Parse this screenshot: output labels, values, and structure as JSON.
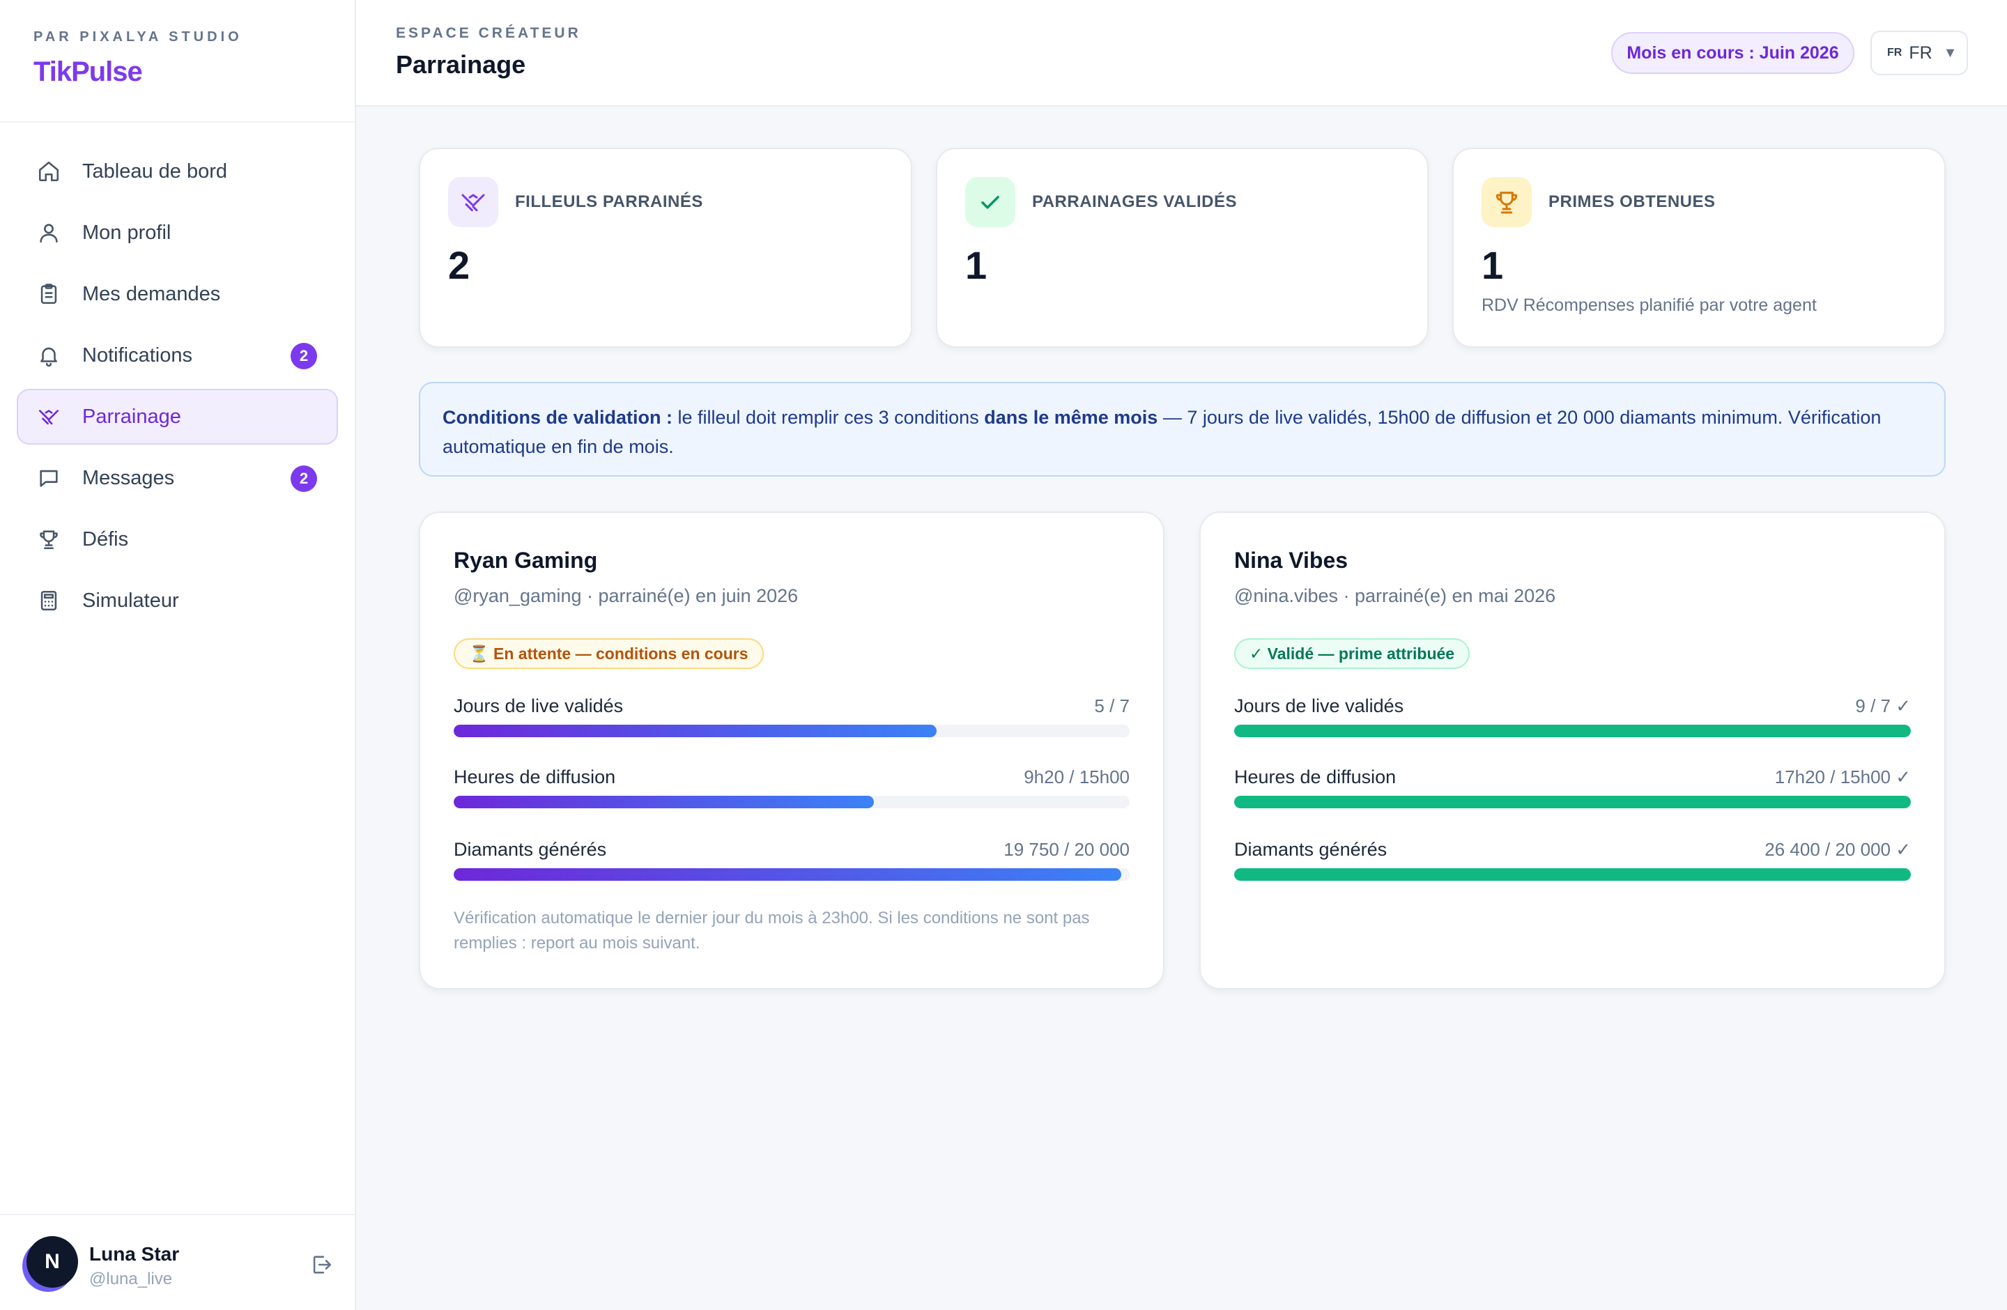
{
  "brand": {
    "kicker": "PAR PIXALYA STUDIO",
    "name": "TikPulse"
  },
  "sidebar": {
    "items": [
      {
        "label": "Tableau de bord",
        "icon": "home-icon"
      },
      {
        "label": "Mon profil",
        "icon": "user-icon"
      },
      {
        "label": "Mes demandes",
        "icon": "clipboard-icon"
      },
      {
        "label": "Notifications",
        "icon": "bell-icon",
        "badge": "2"
      },
      {
        "label": "Parrainage",
        "icon": "handshake-icon",
        "active": true
      },
      {
        "label": "Messages",
        "icon": "chat-icon",
        "badge": "2"
      },
      {
        "label": "Défis",
        "icon": "trophy-icon"
      },
      {
        "label": "Simulateur",
        "icon": "calculator-icon"
      }
    ]
  },
  "user": {
    "initial": "N",
    "name": "Luna Star",
    "handle": "@luna_live"
  },
  "header": {
    "kicker": "ESPACE CRÉATEUR",
    "title": "Parrainage",
    "month_pill": "Mois en cours : Juin 2026",
    "lang_code": "FR",
    "lang_label": "FR",
    "lang_caret": "▼"
  },
  "stats": [
    {
      "label": "FILLEULS PARRAINÉS",
      "value": "2",
      "sub": "",
      "icon": "handshake-icon",
      "color": "#7c3aed",
      "bg": "#f1ebfe"
    },
    {
      "label": "PARRAINAGES VALIDÉS",
      "value": "1",
      "sub": "",
      "icon": "check-icon",
      "color": "#059669",
      "bg": "#dcfce7"
    },
    {
      "label": "PRIMES OBTENUES",
      "value": "1",
      "sub": "RDV Récompenses planifié par votre agent",
      "icon": "trophy-icon",
      "color": "#d97706",
      "bg": "#fef3c7"
    }
  ],
  "info": {
    "lead": "Conditions de validation :",
    "part1": " le filleul doit remplir ces 3 conditions ",
    "strong": "dans le même mois",
    "part2": " — 7 jours de live validés, 15h00 de diffusion et 20 000 diamants minimum. Vérification automatique en fin de mois."
  },
  "referrals": [
    {
      "name": "Ryan Gaming",
      "sub": "@ryan_gaming · parrainé(e) en juin 2026",
      "status": "⏳ En attente — conditions en cours",
      "status_type": "pending",
      "metrics": [
        {
          "label": "Jours de live validés",
          "value": "5 / 7",
          "progress": 0.714
        },
        {
          "label": "Heures de diffusion",
          "value": "9h20 / 15h00",
          "progress": 0.622
        },
        {
          "label": "Diamants générés",
          "value": "19 750 / 20 000",
          "progress": 0.988
        }
      ],
      "note": "Vérification automatique le dernier jour du mois à 23h00. Si les conditions ne sont pas remplies : report au mois suivant."
    },
    {
      "name": "Nina Vibes",
      "sub": "@nina.vibes · parrainé(e) en mai 2026",
      "status": "✓ Validé — prime attribuée",
      "status_type": "valid",
      "metrics": [
        {
          "label": "Jours de live validés",
          "value": "9 / 7 ✓",
          "progress": 1
        },
        {
          "label": "Heures de diffusion",
          "value": "17h20 / 15h00 ✓",
          "progress": 1
        },
        {
          "label": "Diamants générés",
          "value": "26 400 / 20 000 ✓",
          "progress": 1
        }
      ],
      "note": ""
    }
  ]
}
